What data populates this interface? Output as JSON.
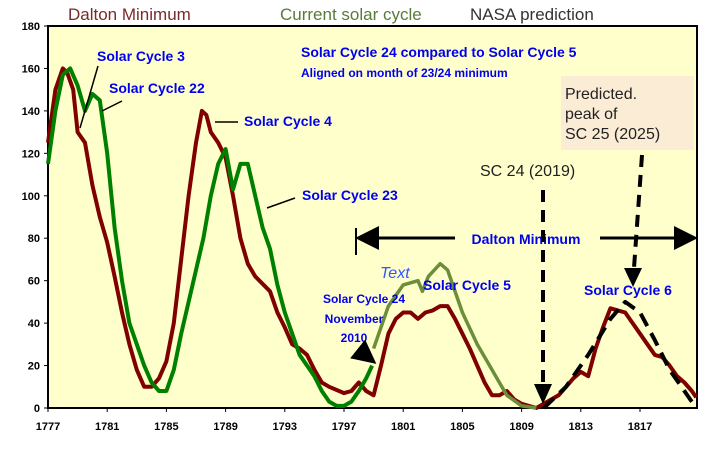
{
  "legend": {
    "dalton": "Dalton Minimum",
    "current": "Current solar cycle",
    "nasa": "NASA prediction"
  },
  "annotations": {
    "title": "Solar Cycle 24 compared to Solar Cycle 5",
    "subtitle": "Aligned on month of 23/24 minimum",
    "sc3": "Solar Cycle 3",
    "sc22": "Solar Cycle 22",
    "sc4": "Solar Cycle 4",
    "sc23": "Solar Cycle 23",
    "sc5": "Solar Cycle 5",
    "sc6": "Solar Cycle 6",
    "dalton": "Dalton Minimum",
    "sc24_l1": "Solar Cycle 24",
    "sc24_l2": "November",
    "sc24_l3": "2010",
    "text_placeholder": "Text",
    "sc24_2019": "SC 24 (2019)",
    "pred_l1": "Predicted.",
    "pred_l2": "peak of",
    "pred_l3": "SC 25 (2025)"
  },
  "chart_data": {
    "type": "line",
    "xlim": [
      1777,
      1821
    ],
    "ylim": [
      0,
      180
    ],
    "xticks": [
      "1777",
      "1781",
      "1785",
      "1789",
      "1793",
      "1797",
      "1801",
      "1805",
      "1809",
      "1813",
      "1817"
    ],
    "yticks": [
      "0",
      "20",
      "40",
      "60",
      "80",
      "100",
      "120",
      "140",
      "160",
      "180"
    ],
    "grid": false,
    "legend_placement": "top",
    "colors": {
      "dalton": "#800000",
      "current": "#008000",
      "prediction": "#6b8e3a",
      "nasa": "#000000",
      "background": "#ffffcc"
    },
    "series": [
      {
        "name": "Dalton Minimum",
        "points": [
          [
            1777,
            125
          ],
          [
            1777.5,
            150
          ],
          [
            1778,
            160
          ],
          [
            1778.3,
            158
          ],
          [
            1778.7,
            150
          ],
          [
            1779,
            130
          ],
          [
            1779.5,
            125
          ],
          [
            1780,
            105
          ],
          [
            1780.5,
            90
          ],
          [
            1781,
            78
          ],
          [
            1781.5,
            62
          ],
          [
            1782,
            45
          ],
          [
            1782.5,
            30
          ],
          [
            1783,
            18
          ],
          [
            1783.5,
            10
          ],
          [
            1784,
            10
          ],
          [
            1784.5,
            14
          ],
          [
            1785,
            22
          ],
          [
            1785.5,
            40
          ],
          [
            1786,
            70
          ],
          [
            1786.5,
            100
          ],
          [
            1787,
            125
          ],
          [
            1787.4,
            140
          ],
          [
            1787.7,
            138
          ],
          [
            1788,
            130
          ],
          [
            1788.5,
            125
          ],
          [
            1789,
            118
          ],
          [
            1789.5,
            100
          ],
          [
            1790,
            80
          ],
          [
            1790.5,
            68
          ],
          [
            1791,
            62
          ],
          [
            1792,
            55
          ],
          [
            1792.5,
            45
          ],
          [
            1793,
            38
          ],
          [
            1793.5,
            30
          ],
          [
            1794,
            28
          ],
          [
            1794.5,
            25
          ],
          [
            1795,
            18
          ],
          [
            1795.5,
            12
          ],
          [
            1796,
            10
          ],
          [
            1797,
            7
          ],
          [
            1797.5,
            8
          ],
          [
            1798,
            12
          ],
          [
            1798.5,
            8
          ],
          [
            1799,
            6
          ],
          [
            1799.5,
            20
          ],
          [
            1800,
            35
          ],
          [
            1800.5,
            42
          ],
          [
            1801,
            45
          ],
          [
            1801.5,
            45
          ],
          [
            1802,
            42
          ],
          [
            1802.5,
            45
          ],
          [
            1803,
            46
          ],
          [
            1803.5,
            48
          ],
          [
            1804,
            48
          ],
          [
            1804.5,
            42
          ],
          [
            1805,
            35
          ],
          [
            1805.5,
            28
          ],
          [
            1806,
            20
          ],
          [
            1806.5,
            12
          ],
          [
            1807,
            6
          ],
          [
            1807.5,
            6
          ],
          [
            1808,
            8
          ],
          [
            1808.5,
            4
          ],
          [
            1809,
            2
          ],
          [
            1810,
            0
          ],
          [
            1810.5,
            2
          ],
          [
            1811,
            4
          ],
          [
            1811.5,
            6
          ],
          [
            1812,
            10
          ],
          [
            1812.5,
            14
          ],
          [
            1813,
            17
          ],
          [
            1813.5,
            15
          ],
          [
            1814,
            28
          ],
          [
            1814.5,
            38
          ],
          [
            1815,
            47
          ],
          [
            1815.5,
            46
          ],
          [
            1816,
            45
          ],
          [
            1816.5,
            40
          ],
          [
            1817,
            35
          ],
          [
            1817.5,
            30
          ],
          [
            1818,
            25
          ],
          [
            1818.5,
            24
          ],
          [
            1819,
            20
          ],
          [
            1819.5,
            15
          ],
          [
            1820,
            12
          ],
          [
            1820.5,
            8
          ],
          [
            1820.8,
            5
          ]
        ]
      },
      {
        "name": "Current solar cycle",
        "points": [
          [
            1777,
            115
          ],
          [
            1777.5,
            140
          ],
          [
            1778,
            157
          ],
          [
            1778.5,
            160
          ],
          [
            1779,
            152
          ],
          [
            1779.5,
            140
          ],
          [
            1780,
            148
          ],
          [
            1780.5,
            145
          ],
          [
            1781,
            120
          ],
          [
            1781.5,
            85
          ],
          [
            1782,
            60
          ],
          [
            1782.5,
            40
          ],
          [
            1783,
            30
          ],
          [
            1783.5,
            20
          ],
          [
            1784,
            12
          ],
          [
            1784.5,
            8
          ],
          [
            1785,
            8
          ],
          [
            1785.5,
            18
          ],
          [
            1786,
            35
          ],
          [
            1786.5,
            50
          ],
          [
            1787,
            65
          ],
          [
            1787.5,
            80
          ],
          [
            1788,
            100
          ],
          [
            1788.5,
            115
          ],
          [
            1789,
            122
          ],
          [
            1789.5,
            103
          ],
          [
            1790,
            115
          ],
          [
            1790.5,
            115
          ],
          [
            1791,
            100
          ],
          [
            1791.5,
            85
          ],
          [
            1792,
            75
          ],
          [
            1792.5,
            58
          ],
          [
            1793,
            45
          ],
          [
            1793.5,
            35
          ],
          [
            1794,
            25
          ],
          [
            1795,
            15
          ],
          [
            1795.5,
            8
          ],
          [
            1796,
            3
          ],
          [
            1796.5,
            1
          ],
          [
            1797,
            1
          ],
          [
            1797.5,
            3
          ],
          [
            1798,
            8
          ],
          [
            1798.5,
            14
          ],
          [
            1798.9,
            20
          ]
        ]
      },
      {
        "points": [
          [
            1799,
            28
          ],
          [
            1800,
            48
          ],
          [
            1801,
            58
          ],
          [
            1802,
            60
          ],
          [
            1802.3,
            55
          ],
          [
            1802.7,
            62
          ],
          [
            1803.5,
            68
          ],
          [
            1804,
            65
          ],
          [
            1805,
            45
          ],
          [
            1806,
            30
          ],
          [
            1807,
            18
          ],
          [
            1808,
            6
          ],
          [
            1809,
            1
          ],
          [
            1810,
            0
          ]
        ]
      },
      {
        "name": "NASA prediction",
        "points": [
          [
            1810.5,
            0
          ],
          [
            1812,
            10
          ],
          [
            1813.5,
            25
          ],
          [
            1815,
            42
          ],
          [
            1816,
            50
          ],
          [
            1817,
            45
          ],
          [
            1818,
            32
          ],
          [
            1819,
            18
          ],
          [
            1820,
            8
          ],
          [
            1820.8,
            0
          ]
        ]
      }
    ]
  }
}
